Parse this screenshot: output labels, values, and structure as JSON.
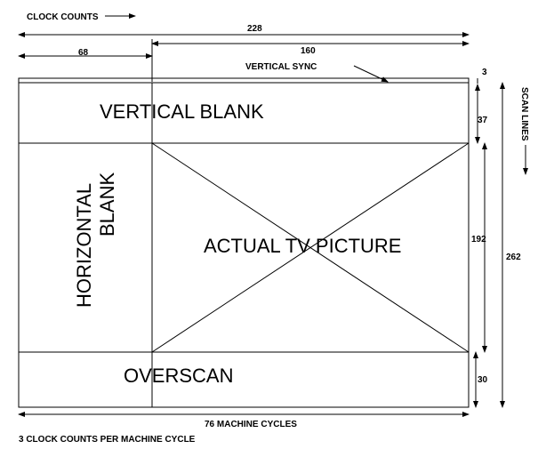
{
  "labels": {
    "clock_counts": "CLOCK COUNTS",
    "width_total": "228",
    "width_picture": "160",
    "width_hblank": "68",
    "vertical_sync": "VERTICAL SYNC",
    "vsync_lines": "3",
    "vertical_blank": "VERTICAL BLANK",
    "vblank_lines": "37",
    "horizontal_blank_line1": "HORIZONTAL",
    "horizontal_blank_line2": "BLANK",
    "actual_tv_picture": "ACTUAL TV PICTURE",
    "picture_lines": "192",
    "total_lines": "262",
    "scan_lines": "SCAN LINES",
    "overscan": "OVERSCAN",
    "overscan_lines": "30",
    "machine_cycles": "76 MACHINE CYCLES",
    "footnote": "3 CLOCK COUNTS PER MACHINE CYCLE"
  }
}
